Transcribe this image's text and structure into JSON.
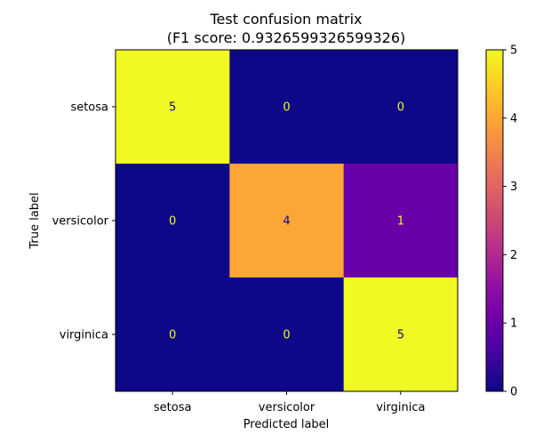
{
  "chart_data": {
    "type": "heatmap",
    "title": "Test confusion matrix",
    "subtitle": "(F1 score: 0.9326599326599326)",
    "xlabel": "Predicted label",
    "ylabel": "True label",
    "x_categories": [
      "setosa",
      "versicolor",
      "virginica"
    ],
    "y_categories": [
      "setosa",
      "versicolor",
      "virginica"
    ],
    "values": [
      [
        5,
        0,
        0
      ],
      [
        0,
        4,
        1
      ],
      [
        0,
        0,
        5
      ]
    ],
    "colormap": "plasma",
    "value_range": [
      0,
      5
    ],
    "colorbar_ticks": [
      "0",
      "1",
      "2",
      "3",
      "4",
      "5"
    ],
    "grid": false,
    "colors": {
      "text_on_dark": "#f0f921",
      "text_on_light": "#0d0887"
    }
  }
}
